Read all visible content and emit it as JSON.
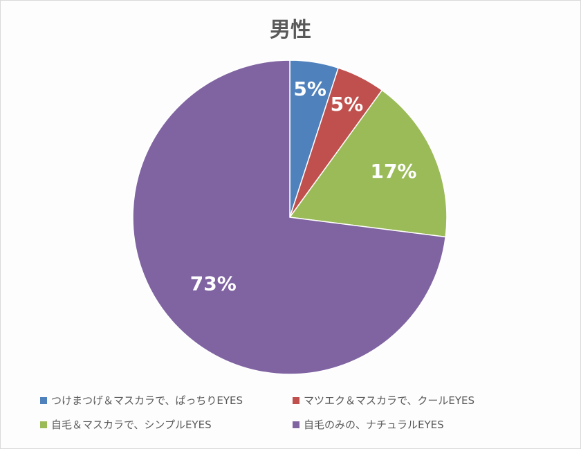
{
  "chart_data": {
    "type": "pie",
    "title": "男性",
    "categories": [
      "つけまつげ＆マスカラで、ぱっちりEYES",
      "マツエク＆マスカラで、クールEYES",
      "自毛＆マスカラで、シンプルEYES",
      "自毛のみの、ナチュラルEYES"
    ],
    "values": [
      5,
      5,
      17,
      73
    ],
    "data_labels": [
      "5%",
      "5%",
      "17%",
      "73%"
    ],
    "colors": [
      "#4f81bd",
      "#c0504d",
      "#9bbb59",
      "#8064a2"
    ],
    "legend_position": "bottom"
  }
}
